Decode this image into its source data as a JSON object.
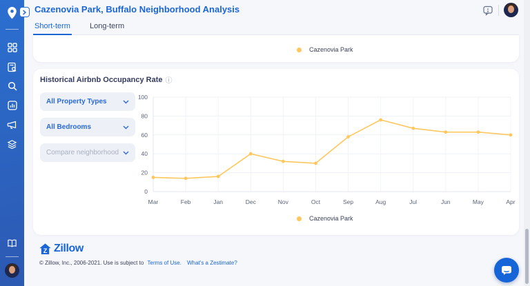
{
  "app": {
    "header": {
      "title": "Cazenovia Park, Buffalo Neighborhood Analysis"
    },
    "sidebar": {
      "icons": [
        "location-pin-logo",
        "dashboard-grid",
        "report-search",
        "search",
        "analytics-chart",
        "megaphone",
        "layers",
        "guide-book",
        "user-avatar"
      ]
    },
    "tabs": [
      {
        "label": "Short-term",
        "active": true
      },
      {
        "label": "Long-term",
        "active": false
      }
    ],
    "top_chart_card": {
      "legend_label": "Cazenovia Park",
      "legend_color": "#FFC75D"
    },
    "occupancy_card": {
      "title": "Historical Airbnb Occupancy Rate",
      "info_icon": "ⓘ",
      "filters": [
        {
          "label": "All Property Types",
          "placeholder": false
        },
        {
          "label": "All Bedrooms",
          "placeholder": false
        },
        {
          "label": "Compare neighborhood",
          "placeholder": true
        }
      ],
      "legend_label": "Cazenovia Park"
    },
    "footer": {
      "logo_text": "Zillow",
      "copyright": "© Zillow, Inc., 2006-2021. Use is subject to",
      "terms_link": "Terms of Use.",
      "zestimate_link": "What's a Zestimate?"
    }
  },
  "chart_data": {
    "type": "line",
    "title": "Historical Airbnb Occupancy Rate",
    "categories": [
      "Mar",
      "Feb",
      "Jan",
      "Dec",
      "Nov",
      "Oct",
      "Sep",
      "Aug",
      "Jul",
      "Jun",
      "May",
      "Apr"
    ],
    "series": [
      {
        "name": "Cazenovia Park",
        "color": "#FFC75D",
        "values": [
          15,
          14,
          16,
          40,
          32,
          30,
          58,
          76,
          67,
          63,
          63,
          60
        ]
      }
    ],
    "ylim": [
      0,
      100
    ],
    "yticks": [
      0,
      20,
      40,
      60,
      80,
      100
    ],
    "grid": true,
    "legend_position": "bottom"
  },
  "colors": {
    "accent_blue": "#1a66d6",
    "line_amber": "#FFC75D",
    "sidebar_top": "#2b6fd0",
    "sidebar_bottom": "#2c59b2",
    "page_bg": "#f6f7fb"
  }
}
